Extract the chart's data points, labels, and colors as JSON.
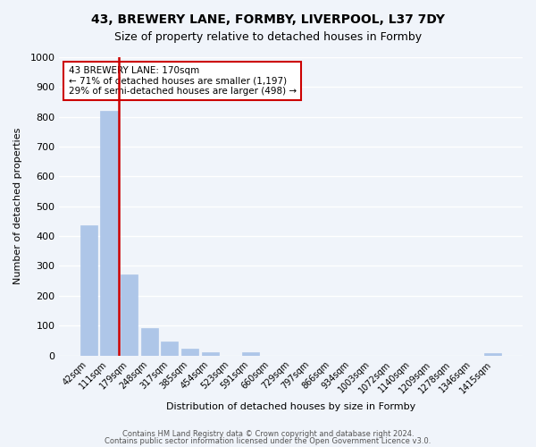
{
  "title1": "43, BREWERY LANE, FORMBY, LIVERPOOL, L37 7DY",
  "title2": "Size of property relative to detached houses in Formby",
  "xlabel": "Distribution of detached houses by size in Formby",
  "ylabel": "Number of detached properties",
  "bar_labels": [
    "42sqm",
    "111sqm",
    "179sqm",
    "248sqm",
    "317sqm",
    "385sqm",
    "454sqm",
    "523sqm",
    "591sqm",
    "660sqm",
    "729sqm",
    "797sqm",
    "866sqm",
    "934sqm",
    "1003sqm",
    "1072sqm",
    "1140sqm",
    "1209sqm",
    "1278sqm",
    "1346sqm",
    "1415sqm"
  ],
  "bar_values": [
    435,
    820,
    270,
    93,
    48,
    22,
    12,
    0,
    10,
    0,
    0,
    0,
    0,
    0,
    0,
    0,
    0,
    0,
    0,
    0,
    8
  ],
  "bar_color": "#aec6e8",
  "bar_edge_color": "#aec6e8",
  "vline_pos": 1.5,
  "vline_color": "#cc0000",
  "ylim": [
    0,
    1000
  ],
  "yticks": [
    0,
    100,
    200,
    300,
    400,
    500,
    600,
    700,
    800,
    900,
    1000
  ],
  "annotation_title": "43 BREWERY LANE: 170sqm",
  "annotation_line1": "← 71% of detached houses are smaller (1,197)",
  "annotation_line2": "29% of semi-detached houses are larger (498) →",
  "annotation_box_color": "#ffffff",
  "annotation_box_edge": "#cc0000",
  "footer1": "Contains HM Land Registry data © Crown copyright and database right 2024.",
  "footer2": "Contains public sector information licensed under the Open Government Licence v3.0.",
  "bg_color": "#f0f4fa",
  "plot_bg_color": "#f0f4fa",
  "grid_color": "#ffffff"
}
